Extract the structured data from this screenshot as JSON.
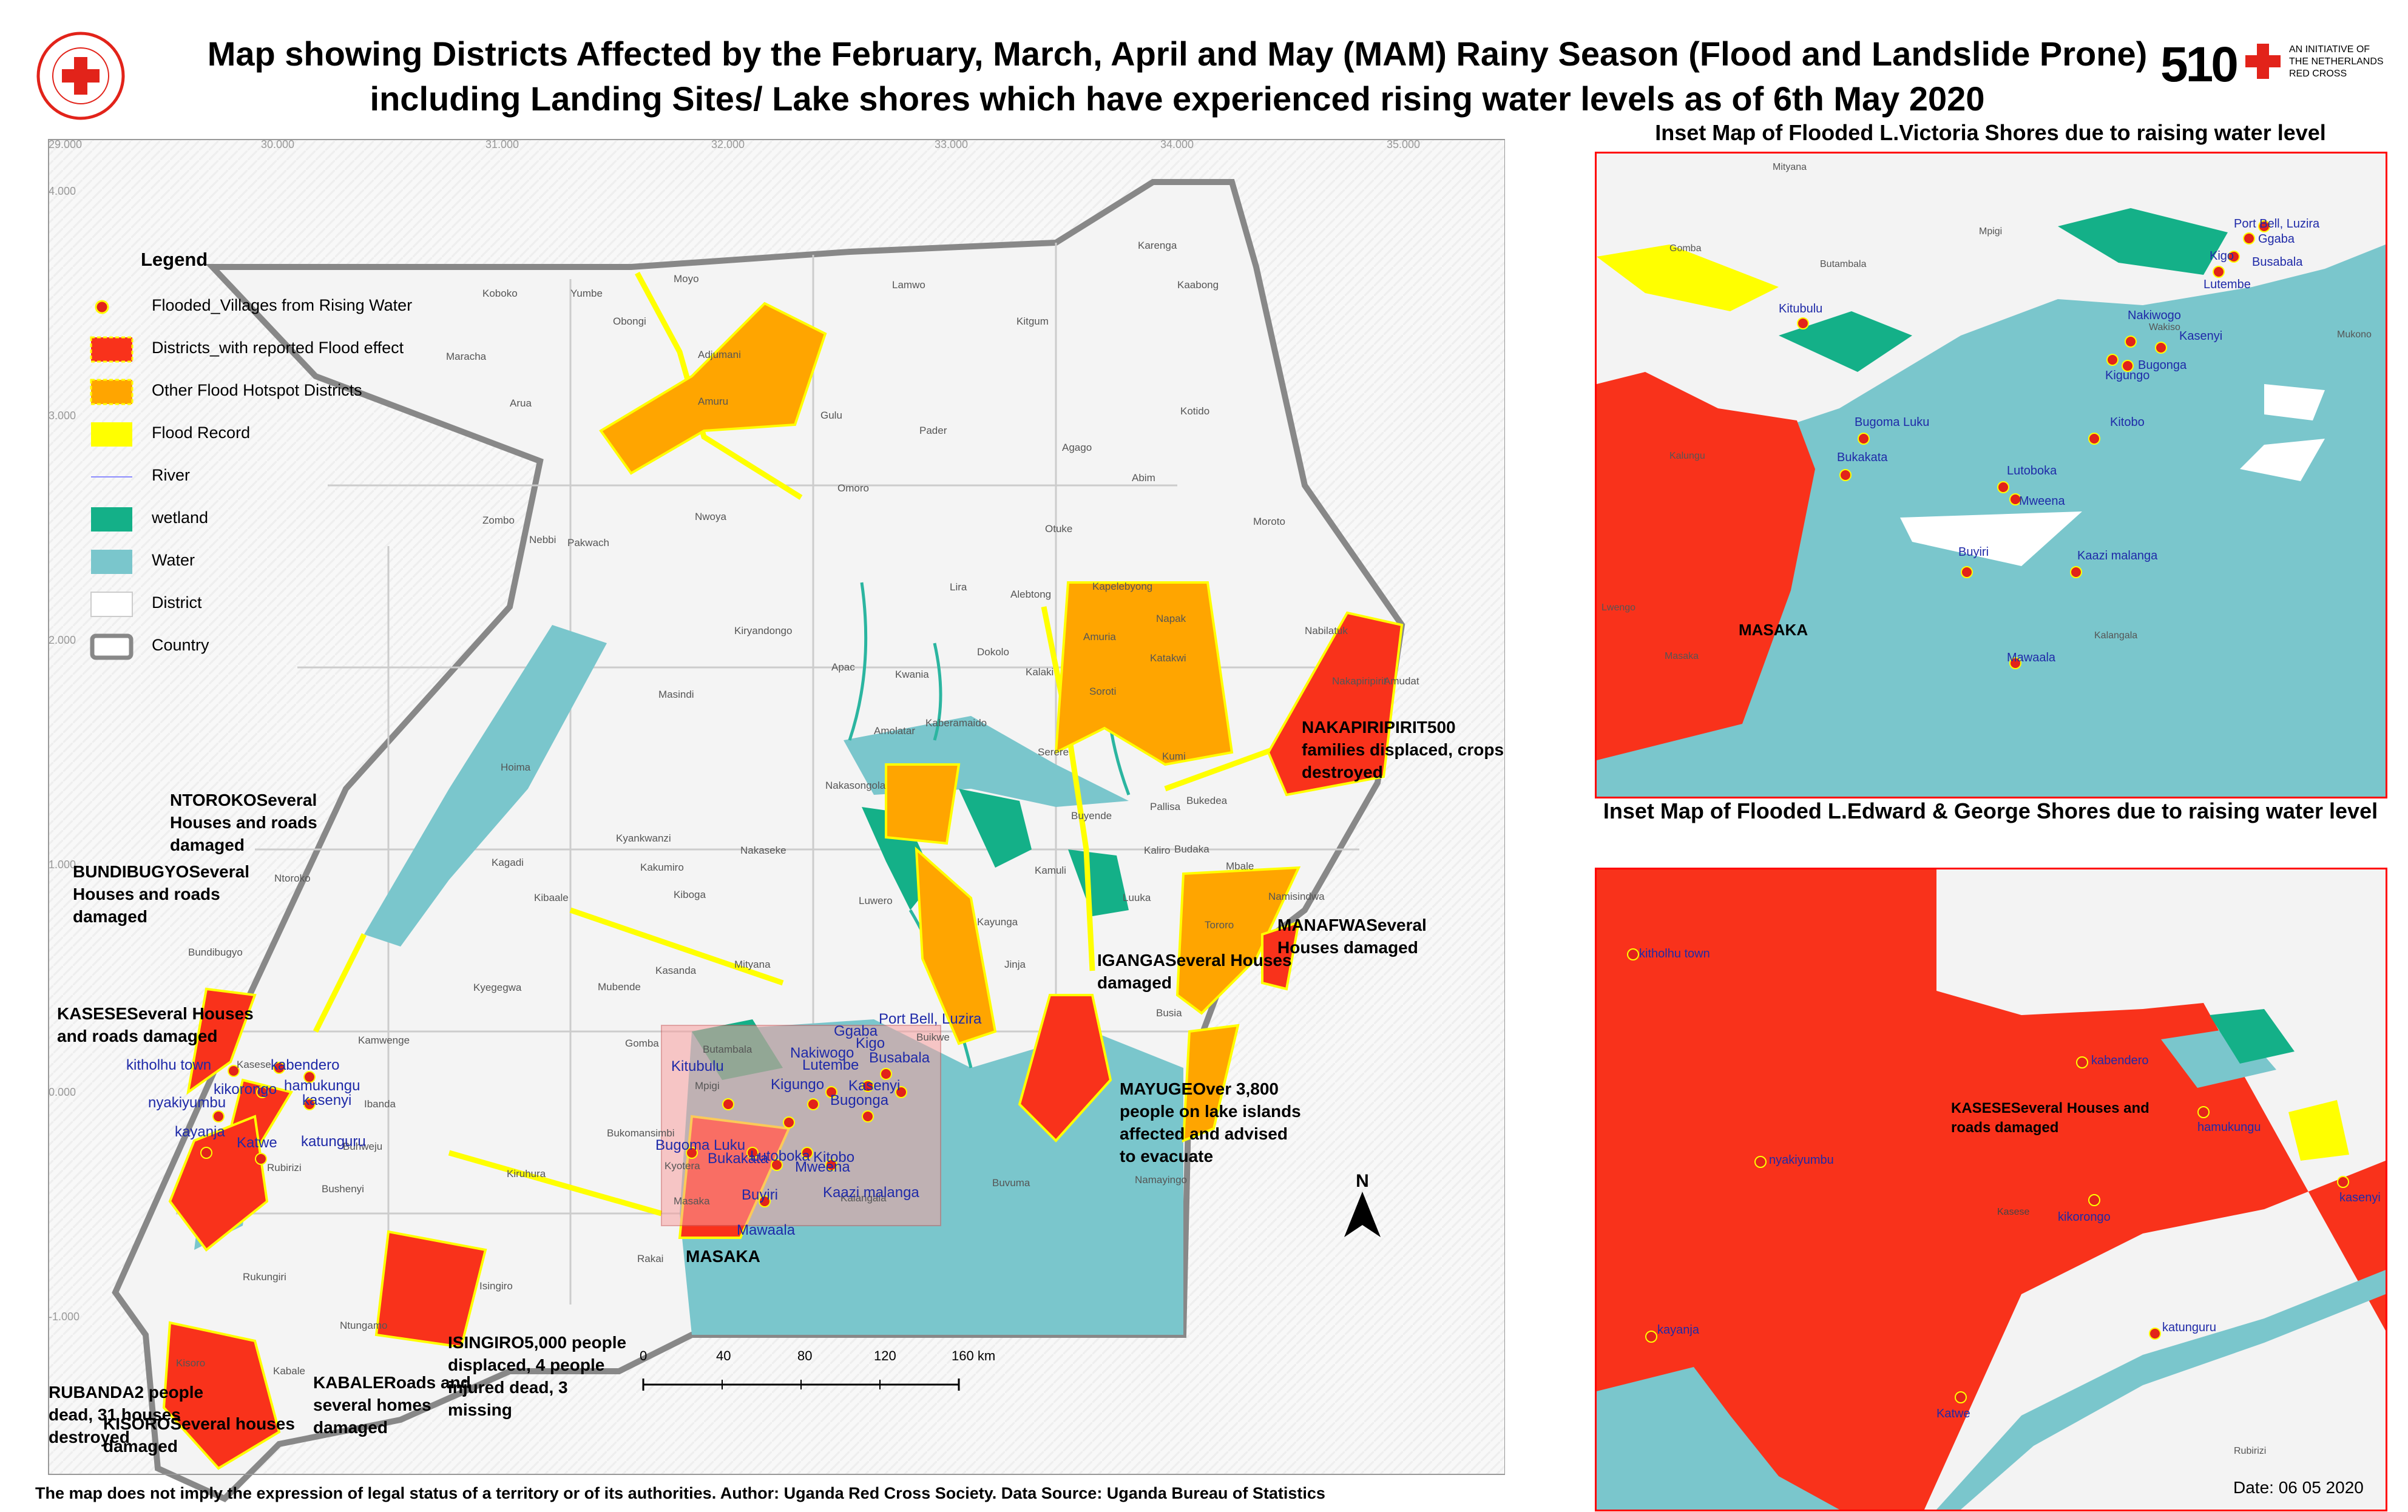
{
  "title": {
    "line1": "Map showing Districts Affected by the February, March, April and May (MAM) Rainy Season (Flood and Landslide Prone)",
    "line2": "including Landing Sites/ Lake shores which have experienced rising water levels as of 6th May 2020"
  },
  "logos": {
    "urcs": "UGANDA RED CROSS SOCIETY",
    "brand_510": "510",
    "brand_510_text": [
      "AN INITIATIVE OF",
      "THE NETHERLANDS",
      "RED CROSS"
    ]
  },
  "legend": {
    "title": "Legend",
    "items": [
      {
        "label": "Flooded_Villages from Rising Water",
        "symbol": "starburst",
        "color": "#e2231a"
      },
      {
        "label": "Districts_with reported Flood effect",
        "symbol": "fill-dashed",
        "color": "#f9321b"
      },
      {
        "label": "Other Flood Hotspot Districts",
        "symbol": "fill-dashed",
        "color": "#ffa500"
      },
      {
        "label": "Flood Record",
        "symbol": "fill",
        "color": "#ffff00"
      },
      {
        "label": "River",
        "symbol": "line",
        "color": "#8c8cff"
      },
      {
        "label": "wetland",
        "symbol": "fill",
        "color": "#14b088"
      },
      {
        "label": "Water",
        "symbol": "fill",
        "color": "#7ac6cc"
      },
      {
        "label": "District",
        "symbol": "outline",
        "color": "#cccccc"
      },
      {
        "label": "Country",
        "symbol": "outline-thick",
        "color": "#888888"
      }
    ]
  },
  "colors": {
    "flood_district": "#f9321b",
    "hotspot": "#ffa500",
    "flood_record": "#ffff00",
    "wetland": "#14b088",
    "water": "#7ac6cc",
    "land": "#f4f4f4"
  },
  "grid_labels": {
    "top": [
      "29.000",
      "30.000",
      "31.000",
      "32.000",
      "33.000",
      "34.000",
      "35.000"
    ],
    "left": [
      "4.000",
      "3.000",
      "2.000",
      "1.000",
      "0.000",
      "-1.000"
    ]
  },
  "districts": [
    "Koboko",
    "Yumbe",
    "Moyo",
    "Obongi",
    "Adjumani",
    "Lamwo",
    "Kaabong",
    "Karenga",
    "Kitgum",
    "Maracha",
    "Arua",
    "Amuru",
    "Gulu",
    "Pader",
    "Kotido",
    "Agago",
    "Abim",
    "Zombo",
    "Nebbi",
    "Pakwach",
    "Nwoya",
    "Omoro",
    "Otuke",
    "Moroto",
    "Lira",
    "Alebtong",
    "Kapelebyong",
    "Napak",
    "Nabilatuk",
    "Kiryandongo",
    "Apac",
    "Amuria",
    "Nakapiripirit",
    "Amudat",
    "Masindi",
    "Kwania",
    "Dokolo",
    "Kalaki",
    "Katakwi",
    "Hoima",
    "Amolatar",
    "Kaberamaido",
    "Soroti",
    "Serere",
    "Kumi",
    "Kyankwanzi",
    "Nakasongola",
    "Pallisa",
    "Bukedea",
    "Kakumiro",
    "Nakaseke",
    "Buyende",
    "Budaka",
    "Kagadi",
    "Kamuli",
    "Mbale",
    "Kibaale",
    "Kiboga",
    "Luwero",
    "Kaliro",
    "Namisindwa",
    "Kasanda",
    "Mityana",
    "Mubende",
    "Kayunga",
    "Luuka",
    "Jinja",
    "Tororo",
    "Kyegegwa",
    "Kamwenge",
    "Busia",
    "Kyotera",
    "Mpigi",
    "Buikwe",
    "Ibanda",
    "Gomba",
    "Butambala",
    "Kalangala",
    "Buvuma",
    "Namayingo",
    "Rakai",
    "Bukomansimbi",
    "Masaka",
    "Isingiro",
    "Rukungiri",
    "Ntungamo",
    "Kisoro",
    "Kabale",
    "Rubirizi",
    "Bushenyi",
    "Buhweju",
    "Kiruhura",
    "Bundibugyo",
    "Ntoroko",
    "Kasese"
  ],
  "annotations": [
    {
      "text": "NTOROKOSeveral Houses and roads damaged"
    },
    {
      "text": "BUNDIBUGYOSeveral Houses and roads damaged"
    },
    {
      "text": "KASESESeveral Houses and roads damaged"
    },
    {
      "text": "NAKAPIRIPIRIT500 families displaced, crops destroyed"
    },
    {
      "text": "MANAFWASeveral Houses damaged"
    },
    {
      "text": "IGANGASeveral Houses damaged"
    },
    {
      "text": "MAYUGEOver 3,800 people on lake islands affected and advised to evacuate"
    },
    {
      "text": "ISINGIRO5,000 people displaced, 4 people injured dead, 3 missing"
    },
    {
      "text": "KABALERoads and several homes damaged"
    },
    {
      "text": "RUBANDA2 people dead, 31 houses destroyed"
    },
    {
      "text": "KISOROSeveral houses damaged"
    },
    {
      "text": "MASAKA"
    }
  ],
  "main_villages": [
    "kitholhu town",
    "kabendero",
    "kikorongo",
    "hamukungu",
    "nyakiyumbu",
    "kasenyi",
    "kayanja",
    "Katwe",
    "katunguru",
    "Port Bell, Luzira",
    "Ggaba",
    "Kigo",
    "Busabala",
    "Kitubulu",
    "Nakiwogo",
    "Lutembe",
    "Kigungo",
    "Bugonga",
    "Kasenyi",
    "Bugoma Luku",
    "Bukakata",
    "Lutoboka",
    "Kitobo",
    "Mweena",
    "Buyiri",
    "Kaazi malanga",
    "Mawaala"
  ],
  "inset1": {
    "title": "Inset Map of Flooded L.Victoria Shores due to raising water level",
    "villages": [
      "Port Bell, Luzira",
      "Ggaba",
      "Kigo",
      "Busabala",
      "Lutembe",
      "Kitubulu",
      "Nakiwogo",
      "Kasenyi",
      "Kigungo",
      "Bugonga",
      "Bugoma Luku",
      "Kitobo",
      "Bukakata",
      "Lutoboka",
      "Mweena",
      "Buyiri",
      "Kaazi malanga",
      "Mawaala"
    ],
    "places": [
      "Mityana",
      "Wakiso",
      "Gomba",
      "Butambala",
      "Mpigi",
      "Kalungu",
      "Lwengo",
      "Masaka",
      "Kalangala",
      "Mukono"
    ],
    "district_label": "MASAKA"
  },
  "inset2": {
    "title": "Inset Map of Flooded L.Edward & George Shores due to raising water level",
    "villages": [
      "kitholhu town",
      "kabendero",
      "nyakiyumbu",
      "kikorongo",
      "hamukungu",
      "kasenyi",
      "kayanja",
      "Katwe",
      "katunguru"
    ],
    "annotation": "KASESESeveral Houses and roads damaged",
    "places": [
      "Kasese",
      "Rubirizi"
    ]
  },
  "scale": {
    "ticks": [
      "0",
      "40",
      "80",
      "120",
      "160 km"
    ]
  },
  "north": "N",
  "footer": "The map does not imply the expression of legal status of a territory or of its authorities. Author: Uganda Red Cross Society. Data Source: Uganda Bureau of Statistics",
  "date": "Date: 06 05 2020"
}
